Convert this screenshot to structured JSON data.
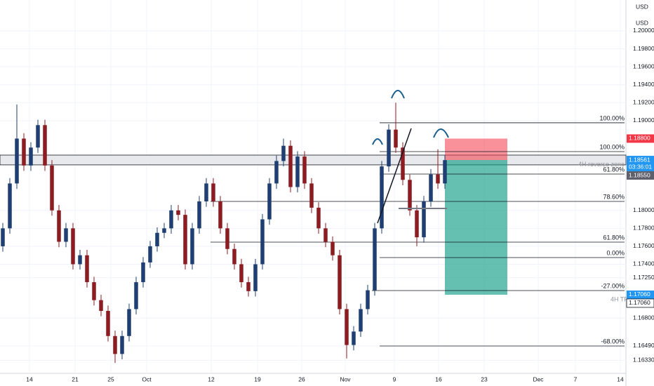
{
  "chart_data": {
    "type": "candlestick",
    "currency": "USD",
    "up_color": "#1f3f73",
    "down_color": "#8e1b22",
    "xlim": [
      -0.4,
      88.8
    ],
    "ylim": [
      1.16184,
      1.20344
    ],
    "xticks": [
      {
        "value": 3.8,
        "label": "14"
      },
      {
        "value": 10.3,
        "label": "21"
      },
      {
        "value": 15.4,
        "label": "25"
      },
      {
        "value": 20.5,
        "label": "Oct"
      },
      {
        "value": 29.7,
        "label": "12"
      },
      {
        "value": 36.3,
        "label": "19"
      },
      {
        "value": 42.6,
        "label": "26"
      },
      {
        "value": 48.8,
        "label": "Nov"
      },
      {
        "value": 55.8,
        "label": "9"
      },
      {
        "value": 62.1,
        "label": "16"
      },
      {
        "value": 68.6,
        "label": "23"
      },
      {
        "value": 76.3,
        "label": "Dec"
      },
      {
        "value": 81.6,
        "label": "7"
      },
      {
        "value": 88,
        "label": "14"
      }
    ],
    "yticks": [
      {
        "value": 1.2,
        "label": "1.20000"
      },
      {
        "value": 1.198,
        "label": "1.19800"
      },
      {
        "value": 1.196,
        "label": "1.19600"
      },
      {
        "value": 1.194,
        "label": "1.19400"
      },
      {
        "value": 1.192,
        "label": "1.19200"
      },
      {
        "value": 1.19,
        "label": "1.19000"
      },
      {
        "value": 1.18,
        "label": "1.18000"
      },
      {
        "value": 1.178,
        "label": "1.17800"
      },
      {
        "value": 1.176,
        "label": "1.17600"
      },
      {
        "value": 1.174,
        "label": "1.17400"
      },
      {
        "value": 1.1725,
        "label": "1.17250"
      },
      {
        "value": 1.168,
        "label": "1.16800"
      },
      {
        "value": 1.1649,
        "label": "1.16490"
      },
      {
        "value": 1.1633,
        "label": "1.16330"
      }
    ],
    "candles": [
      [
        1.176,
        1.1786,
        1.1754,
        1.178
      ],
      [
        1.178,
        1.1836,
        1.1774,
        1.183
      ],
      [
        1.183,
        1.1918,
        1.1824,
        1.188
      ],
      [
        1.188,
        1.1886,
        1.1844,
        1.185
      ],
      [
        1.185,
        1.1876,
        1.1844,
        1.187
      ],
      [
        1.187,
        1.1901,
        1.1864,
        1.1895
      ],
      [
        1.1895,
        1.1901,
        1.1844,
        1.185
      ],
      [
        1.185,
        1.1856,
        1.1794,
        1.18
      ],
      [
        1.18,
        1.1806,
        1.1759,
        1.1765
      ],
      [
        1.1765,
        1.1786,
        1.1759,
        1.178
      ],
      [
        1.178,
        1.1786,
        1.1734,
        1.174
      ],
      [
        1.174,
        1.1756,
        1.1734,
        1.175
      ],
      [
        1.175,
        1.1756,
        1.1714,
        1.172
      ],
      [
        1.172,
        1.1726,
        1.1694,
        1.17
      ],
      [
        1.17,
        1.1706,
        1.1682,
        1.1688
      ],
      [
        1.1688,
        1.1694,
        1.1654,
        1.166
      ],
      [
        1.166,
        1.1666,
        1.163,
        1.164
      ],
      [
        1.164,
        1.1666,
        1.1634,
        1.166
      ],
      [
        1.166,
        1.1696,
        1.1654,
        1.169
      ],
      [
        1.169,
        1.1726,
        1.1684,
        1.172
      ],
      [
        1.172,
        1.1748,
        1.1714,
        1.1742
      ],
      [
        1.1742,
        1.1766,
        1.1736,
        1.176
      ],
      [
        1.176,
        1.1781,
        1.1754,
        1.1775
      ],
      [
        1.1775,
        1.1786,
        1.1769,
        1.178
      ],
      [
        1.178,
        1.1806,
        1.1774,
        1.18
      ],
      [
        1.18,
        1.1806,
        1.1789,
        1.1795
      ],
      [
        1.1795,
        1.1801,
        1.1734,
        1.174
      ],
      [
        1.174,
        1.1786,
        1.1734,
        1.178
      ],
      [
        1.178,
        1.1816,
        1.1774,
        1.181
      ],
      [
        1.181,
        1.1836,
        1.1804,
        1.183
      ],
      [
        1.183,
        1.1836,
        1.1804,
        1.181
      ],
      [
        1.181,
        1.1816,
        1.1774,
        1.178
      ],
      [
        1.178,
        1.1786,
        1.1751,
        1.1757
      ],
      [
        1.1757,
        1.1763,
        1.1734,
        1.174
      ],
      [
        1.174,
        1.1746,
        1.1714,
        1.172
      ],
      [
        1.172,
        1.1726,
        1.1704,
        1.171
      ],
      [
        1.171,
        1.1746,
        1.1704,
        1.174
      ],
      [
        1.174,
        1.1796,
        1.1734,
        1.179
      ],
      [
        1.179,
        1.1836,
        1.1784,
        1.183
      ],
      [
        1.183,
        1.1861,
        1.1824,
        1.1855
      ],
      [
        1.1855,
        1.188,
        1.1849,
        1.1872
      ],
      [
        1.1872,
        1.1878,
        1.182,
        1.1826
      ],
      [
        1.1826,
        1.1866,
        1.182,
        1.186
      ],
      [
        1.186,
        1.1866,
        1.1824,
        1.183
      ],
      [
        1.183,
        1.1836,
        1.1797,
        1.1803
      ],
      [
        1.1803,
        1.1809,
        1.1774,
        1.178
      ],
      [
        1.178,
        1.1786,
        1.1759,
        1.1765
      ],
      [
        1.1765,
        1.1771,
        1.1744,
        1.175
      ],
      [
        1.175,
        1.1756,
        1.1684,
        1.169
      ],
      [
        1.169,
        1.1696,
        1.1635,
        1.165
      ],
      [
        1.165,
        1.1671,
        1.1644,
        1.1665
      ],
      [
        1.1665,
        1.1696,
        1.1659,
        1.169
      ],
      [
        1.169,
        1.1717,
        1.1684,
        1.1711
      ],
      [
        1.1711,
        1.1786,
        1.1705,
        1.178
      ],
      [
        1.178,
        1.1855,
        1.1774,
        1.1849
      ],
      [
        1.1849,
        1.1896,
        1.1843,
        1.189
      ],
      [
        1.189,
        1.192,
        1.1864,
        1.187
      ],
      [
        1.187,
        1.1876,
        1.1828,
        1.1834
      ],
      [
        1.1834,
        1.184,
        1.1794,
        1.18
      ],
      [
        1.18,
        1.1806,
        1.176,
        1.177
      ],
      [
        1.177,
        1.1816,
        1.1764,
        1.181
      ],
      [
        1.181,
        1.1846,
        1.1804,
        1.184
      ],
      [
        1.184,
        1.1868,
        1.1824,
        1.183
      ],
      [
        1.183,
        1.1862,
        1.1824,
        1.1856
      ]
    ],
    "fib_levels": [
      {
        "label": "100.00%",
        "price": 1.18976,
        "from": 53.7
      },
      {
        "label": "100.00%",
        "price": 1.18655,
        "from": 53.7
      },
      {
        "label": "61.80%",
        "price": 1.18405,
        "from": 53.7
      },
      {
        "label": "78.60%",
        "price": 1.181,
        "from": 29.6
      },
      {
        "label": "61.80%",
        "price": 1.17646,
        "from": 29.6
      },
      {
        "label": "0.00%",
        "price": 1.17474,
        "from": 53.7
      },
      {
        "label": "-27.00%",
        "price": 1.17107,
        "from": 52.6
      },
      {
        "label": "-68.00%",
        "price": 1.16489,
        "from": 53.7
      }
    ],
    "zone": {
      "label": "4H reverse zone",
      "top": 1.18616,
      "bottom": 1.18507
    },
    "position": {
      "from": 63,
      "to": 71.9,
      "stop": 1.188,
      "entry": 1.18561,
      "target": 1.1706,
      "target_label": "4H TP"
    },
    "price_tags": [
      {
        "price": 1.188,
        "label": "1.18800",
        "color": "#f23645"
      },
      {
        "price": 1.18561,
        "label": "1.18561",
        "color": "#2196f3",
        "sub": "03:36:01"
      },
      {
        "price": 1.1855,
        "label": "1.18550",
        "color": "#5d606b"
      },
      {
        "price": 1.1706,
        "label": "1.17060",
        "color": "#2196f3"
      },
      {
        "price": 1.1706,
        "label": "1.17060",
        "color": "#ffffff"
      }
    ]
  }
}
